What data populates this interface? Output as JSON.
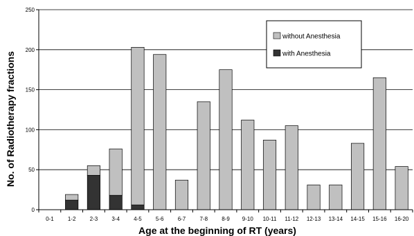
{
  "chart_data": {
    "type": "bar",
    "stacked": true,
    "categories": [
      "0-1",
      "1-2",
      "2-3",
      "3-4",
      "4-5",
      "5-6",
      "6-7",
      "7-8",
      "8-9",
      "9-10",
      "10-11",
      "11-12",
      "12-13",
      "13-14",
      "14-15",
      "15-16",
      "16-20"
    ],
    "series": [
      {
        "name": "with Anesthesia",
        "color": "#333333",
        "values": [
          0,
          12,
          43,
          18,
          6,
          0,
          0,
          0,
          0,
          0,
          0,
          0,
          0,
          0,
          0,
          0,
          0
        ]
      },
      {
        "name": "without Anesthesia",
        "color": "#c0c0c0",
        "values": [
          0,
          7,
          12,
          58,
          197,
          194,
          37,
          135,
          175,
          112,
          87,
          105,
          31,
          31,
          83,
          165,
          54
        ]
      }
    ],
    "xlabel": "Age at the beginning of RT (years)",
    "ylabel": "No. of Radiotherapy fractions",
    "ylim": [
      0,
      250
    ],
    "yticks": [
      0,
      50,
      100,
      150,
      200,
      250
    ],
    "grid": true,
    "legend": {
      "position": "top-right",
      "entries": [
        {
          "label": "without Anesthesia",
          "color": "#c0c0c0"
        },
        {
          "label": "with Anesthesia",
          "color": "#333333"
        }
      ]
    }
  }
}
